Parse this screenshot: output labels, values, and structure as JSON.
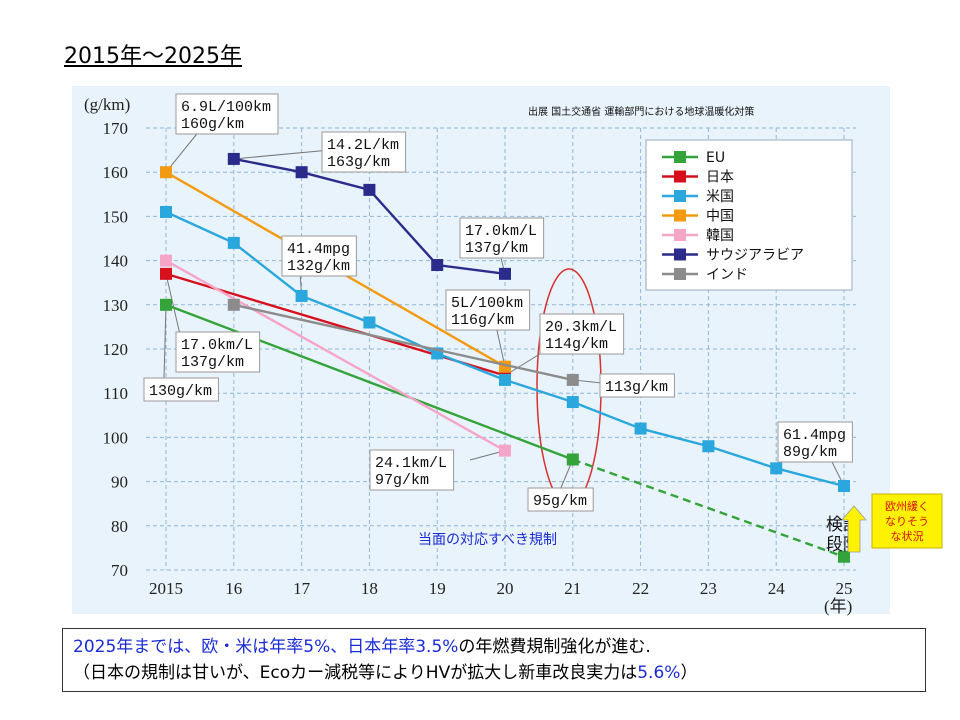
{
  "page_title": "2015年～2025年",
  "source_note": "出展  国土交通省  運輸部門における地球温暖化対策",
  "colors": {
    "plot_bg": "#e9f3fb",
    "grid": "#8fb8d6",
    "eu": "#33a33a",
    "japan": "#d8101e",
    "us": "#2aa7dd",
    "china": "#f29a11",
    "korea": "#f5a5c8",
    "saudi": "#2b2b8c",
    "india": "#8c8c8c",
    "ellipse": "#d83030",
    "note_text": "#1a2bd6",
    "yellow_box": "#fff200",
    "yellow_text": "#d81010"
  },
  "chart_data": {
    "type": "line",
    "ylabel": "(g/km)",
    "xlabel": "(年)",
    "x_ticks": [
      2015,
      2016,
      2017,
      2018,
      2019,
      2020,
      2021,
      2022,
      2023,
      2024,
      2025
    ],
    "x_tick_labels": [
      "2015",
      "16",
      "17",
      "18",
      "19",
      "20",
      "21",
      "22",
      "23",
      "24",
      "25"
    ],
    "y_ticks": [
      70,
      80,
      90,
      100,
      110,
      120,
      130,
      140,
      150,
      160,
      170
    ],
    "ylim": [
      70,
      170
    ],
    "xlim": [
      2015,
      2025
    ],
    "grid": true,
    "legend_position": "top-right",
    "series": [
      {
        "name": "EU",
        "key": "eu",
        "points": [
          [
            2015,
            130
          ],
          [
            2021,
            95
          ]
        ],
        "projection": [
          [
            2021,
            95
          ],
          [
            2025,
            73
          ]
        ]
      },
      {
        "name": "日本",
        "key": "japan",
        "points": [
          [
            2015,
            137
          ],
          [
            2020,
            114
          ]
        ]
      },
      {
        "name": "米国",
        "key": "us",
        "points": [
          [
            2015,
            151
          ],
          [
            2016,
            144
          ],
          [
            2017,
            132
          ],
          [
            2018,
            126
          ],
          [
            2019,
            119
          ],
          [
            2020,
            113
          ],
          [
            2021,
            108
          ],
          [
            2022,
            102
          ],
          [
            2023,
            98
          ],
          [
            2024,
            93
          ],
          [
            2025,
            89
          ]
        ]
      },
      {
        "name": "中国",
        "key": "china",
        "points": [
          [
            2015,
            160
          ],
          [
            2020,
            116
          ]
        ]
      },
      {
        "name": "韓国",
        "key": "korea",
        "points": [
          [
            2015,
            140
          ],
          [
            2020,
            97
          ]
        ]
      },
      {
        "name": "サウジアラビア",
        "key": "saudi",
        "points": [
          [
            2016,
            163
          ],
          [
            2017,
            160
          ],
          [
            2018,
            156
          ],
          [
            2019,
            139
          ],
          [
            2020,
            137
          ]
        ]
      },
      {
        "name": "インド",
        "key": "india",
        "points": [
          [
            2016,
            130
          ],
          [
            2021,
            113
          ]
        ]
      }
    ],
    "annotations": [
      {
        "lines": [
          "6.9L/100km",
          "160g/km"
        ],
        "x": 2015,
        "y": 160
      },
      {
        "lines": [
          "14.2L/km",
          "163g/km"
        ],
        "x": 2016,
        "y": 163
      },
      {
        "lines": [
          "41.4mpg",
          "132g/km"
        ],
        "x": 2017,
        "y": 132
      },
      {
        "lines": [
          "17.0km/L",
          "137g/km"
        ],
        "x": 2020,
        "y": 137
      },
      {
        "lines": [
          "5L/100km",
          "116g/km"
        ],
        "x": 2020,
        "y": 116
      },
      {
        "lines": [
          "20.3km/L",
          "114g/km"
        ],
        "x": 2020,
        "y": 114
      },
      {
        "lines": [
          "17.0km/L",
          "137g/km"
        ],
        "x": 2015,
        "y": 137
      },
      {
        "lines": [
          "130g/km"
        ],
        "x": 2015,
        "y": 130
      },
      {
        "lines": [
          "113g/km"
        ],
        "x": 2021,
        "y": 113
      },
      {
        "lines": [
          "24.1km/L",
          "97g/km"
        ],
        "x": 2020,
        "y": 97
      },
      {
        "lines": [
          "95g/km"
        ],
        "x": 2021,
        "y": 95
      },
      {
        "lines": [
          "61.4mpg",
          "89g/km"
        ],
        "x": 2025,
        "y": 89
      }
    ],
    "center_note": "当面の対応すべき規制",
    "kentou_text": "検討段階",
    "yellow_note": [
      "欧州緩く",
      "なりそう",
      "な状況"
    ]
  },
  "footer": {
    "line1_a": "2025年までは、欧・米は年率5%、日本年率3.5%",
    "line1_b": "の年燃費規制強化が進む.",
    "line2_a": "（日本の規制は甘いが、Ecoカー減税等によりHVが拡大し新車改良実力は",
    "line2_b": "5.6%",
    "line2_c": "）"
  }
}
